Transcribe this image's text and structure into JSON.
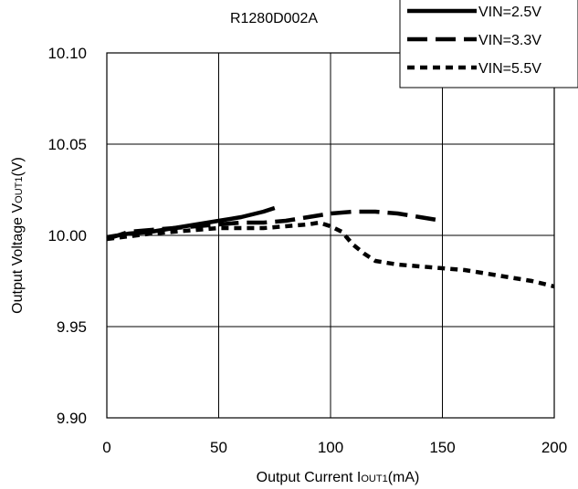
{
  "chart_data": {
    "type": "line",
    "title": "R1280D002A",
    "xlabel": {
      "prefix": "Output Current I",
      "sub": "OUT1",
      "suffix": "(mA)"
    },
    "ylabel": {
      "prefix": "Output Voltage V",
      "sub": "OUT1",
      "suffix": "(V)"
    },
    "xlim": [
      0,
      200
    ],
    "ylim": [
      9.9,
      10.1
    ],
    "xticks": [
      "0",
      "50",
      "100",
      "150",
      "200"
    ],
    "yticks": [
      "10.10",
      "10.05",
      "10.00",
      "9.95",
      "9.90"
    ],
    "grid": true,
    "legend_position": "top-right",
    "series": [
      {
        "name": "VIN=2.5V",
        "style": "solid",
        "color": "#000000",
        "x": [
          0,
          10,
          20,
          30,
          40,
          50,
          60,
          70,
          75
        ],
        "y": [
          9.999,
          10.001,
          10.002,
          10.004,
          10.006,
          10.008,
          10.01,
          10.013,
          10.015
        ]
      },
      {
        "name": "VIN=3.3V",
        "style": "dash",
        "color": "#000000",
        "x": [
          0,
          10,
          20,
          30,
          40,
          50,
          60,
          70,
          80,
          90,
          100,
          110,
          120,
          130,
          140,
          150
        ],
        "y": [
          9.998,
          10.002,
          10.003,
          10.004,
          10.005,
          10.006,
          10.007,
          10.007,
          10.008,
          10.01,
          10.012,
          10.013,
          10.013,
          10.012,
          10.01,
          10.008
        ]
      },
      {
        "name": "VIN=5.5V",
        "style": "dot",
        "color": "#000000",
        "x": [
          0,
          20,
          40,
          50,
          60,
          70,
          80,
          90,
          95,
          100,
          105,
          110,
          115,
          120,
          130,
          140,
          150,
          160,
          170,
          180,
          190,
          200
        ],
        "y": [
          9.998,
          10.001,
          10.003,
          10.004,
          10.004,
          10.004,
          10.005,
          10.006,
          10.007,
          10.005,
          10.002,
          9.995,
          9.99,
          9.986,
          9.984,
          9.983,
          9.982,
          9.981,
          9.979,
          9.977,
          9.975,
          9.972
        ]
      }
    ]
  }
}
